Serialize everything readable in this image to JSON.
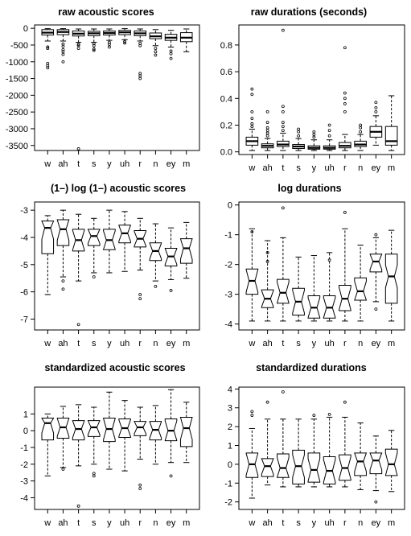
{
  "chart_data": [
    {
      "type": "boxplot",
      "title": "raw acoustic scores",
      "notched": false,
      "categories": [
        "w",
        "ah",
        "t",
        "s",
        "y",
        "uh",
        "r",
        "n",
        "ey",
        "m"
      ],
      "ylim": [
        -3650,
        100
      ],
      "yticks": [
        0,
        -500,
        -1000,
        -1500,
        -2000,
        -2500,
        -3000,
        -3500
      ],
      "ytick_labels": [
        "0",
        "-500",
        "-1000",
        "-1500",
        "-2000",
        "-2500",
        "-3000",
        "-3500"
      ],
      "boxes": [
        {
          "low": -380,
          "q1": -200,
          "median": -130,
          "q3": -40,
          "high": -10,
          "outliers": [
            -560,
            -600,
            -1050,
            -1120,
            -1180
          ]
        },
        {
          "low": -380,
          "q1": -190,
          "median": -110,
          "q3": -40,
          "high": -10,
          "outliers": [
            -470,
            -540,
            -640,
            -700,
            -780,
            -1000
          ]
        },
        {
          "low": -420,
          "q1": -230,
          "median": -160,
          "q3": -80,
          "high": -20,
          "outliers": [
            -480,
            -510,
            -600,
            -3600
          ]
        },
        {
          "low": -420,
          "q1": -220,
          "median": -150,
          "q3": -90,
          "high": -20,
          "outliers": [
            -460,
            -520,
            -620,
            -660
          ]
        },
        {
          "low": -360,
          "q1": -200,
          "median": -140,
          "q3": -80,
          "high": -20,
          "outliers": [
            -420,
            -480,
            -560
          ]
        },
        {
          "low": -340,
          "q1": -190,
          "median": -120,
          "q3": -60,
          "high": -10,
          "outliers": [
            -400,
            -440
          ]
        },
        {
          "low": -380,
          "q1": -220,
          "median": -150,
          "q3": -80,
          "high": -20,
          "outliers": [
            -450,
            -520,
            -1350,
            -1420,
            -1500
          ]
        },
        {
          "low": -520,
          "q1": -310,
          "median": -240,
          "q3": -140,
          "high": -40,
          "outliers": [
            -600,
            -700,
            -800
          ]
        },
        {
          "low": -560,
          "q1": -360,
          "median": -280,
          "q3": -180,
          "high": -60,
          "outliers": [
            -680,
            -760,
            -900
          ]
        },
        {
          "low": -700,
          "q1": -400,
          "median": -280,
          "q3": -130,
          "high": -20,
          "outliers": []
        }
      ]
    },
    {
      "type": "boxplot",
      "title": "raw durations (seconds)",
      "notched": false,
      "categories": [
        "w",
        "ah",
        "t",
        "s",
        "y",
        "uh",
        "r",
        "n",
        "ey",
        "m"
      ],
      "ylim": [
        -0.02,
        0.95
      ],
      "yticks": [
        0,
        0.2,
        0.4,
        0.6,
        0.8
      ],
      "ytick_labels": [
        "0.0",
        "0.2",
        "0.4",
        "0.6",
        "0.8"
      ],
      "boxes": [
        {
          "low": 0.01,
          "q1": 0.05,
          "median": 0.08,
          "q3": 0.11,
          "high": 0.17,
          "outliers": [
            0.19,
            0.21,
            0.25,
            0.3,
            0.43,
            0.47
          ]
        },
        {
          "low": 0.01,
          "q1": 0.03,
          "median": 0.045,
          "q3": 0.06,
          "high": 0.1,
          "outliers": [
            0.12,
            0.14,
            0.16,
            0.18,
            0.22,
            0.3
          ]
        },
        {
          "low": 0.01,
          "q1": 0.04,
          "median": 0.055,
          "q3": 0.08,
          "high": 0.14,
          "outliers": [
            0.16,
            0.19,
            0.22,
            0.3,
            0.34,
            0.91
          ]
        },
        {
          "low": 0.01,
          "q1": 0.025,
          "median": 0.04,
          "q3": 0.055,
          "high": 0.1,
          "outliers": [
            0.12,
            0.15,
            0.17
          ]
        },
        {
          "low": 0.01,
          "q1": 0.02,
          "median": 0.03,
          "q3": 0.045,
          "high": 0.09,
          "outliers": [
            0.11,
            0.13,
            0.15
          ]
        },
        {
          "low": 0.01,
          "q1": 0.02,
          "median": 0.03,
          "q3": 0.045,
          "high": 0.09,
          "outliers": [
            0.12,
            0.16,
            0.2
          ]
        },
        {
          "low": 0.01,
          "q1": 0.03,
          "median": 0.045,
          "q3": 0.07,
          "high": 0.13,
          "outliers": [
            0.3,
            0.36,
            0.4,
            0.44,
            0.78
          ]
        },
        {
          "low": 0.01,
          "q1": 0.04,
          "median": 0.055,
          "q3": 0.08,
          "high": 0.13,
          "outliers": [
            0.15,
            0.18,
            0.2
          ]
        },
        {
          "low": 0.05,
          "q1": 0.11,
          "median": 0.15,
          "q3": 0.19,
          "high": 0.27,
          "outliers": [
            0.3,
            0.33,
            0.37
          ]
        },
        {
          "low": 0.01,
          "q1": 0.05,
          "median": 0.08,
          "q3": 0.19,
          "high": 0.42,
          "outliers": []
        }
      ]
    },
    {
      "type": "boxplot",
      "title": "(1–) log (1–) acoustic scores",
      "notched": true,
      "categories": [
        "w",
        "ah",
        "t",
        "s",
        "y",
        "uh",
        "r",
        "n",
        "ey",
        "m"
      ],
      "ylim": [
        -7.4,
        -2.7
      ],
      "yticks": [
        -3,
        -4,
        -5,
        -6,
        -7
      ],
      "ytick_labels": [
        "-3",
        "-4",
        "-5",
        "-6",
        "-7"
      ],
      "boxes": [
        {
          "low": -6.1,
          "q1": -4.6,
          "median": -3.65,
          "q3": -3.4,
          "high": -3.2,
          "outliers": []
        },
        {
          "low": -5.45,
          "q1": -4.3,
          "median": -3.7,
          "q3": -3.35,
          "high": -3.0,
          "outliers": [
            -5.6,
            -5.9
          ]
        },
        {
          "low": -5.6,
          "q1": -4.5,
          "median": -4.1,
          "q3": -3.7,
          "high": -3.15,
          "outliers": [
            -7.2
          ]
        },
        {
          "low": -5.3,
          "q1": -4.3,
          "median": -3.95,
          "q3": -3.7,
          "high": -3.3,
          "outliers": [
            -5.45
          ]
        },
        {
          "low": -5.3,
          "q1": -4.45,
          "median": -4.1,
          "q3": -3.7,
          "high": -3.0,
          "outliers": []
        },
        {
          "low": -5.25,
          "q1": -4.2,
          "median": -3.85,
          "q3": -3.55,
          "high": -3.05,
          "outliers": []
        },
        {
          "low": -5.2,
          "q1": -4.35,
          "median": -4.05,
          "q3": -3.75,
          "high": -3.3,
          "outliers": [
            -6.1,
            -6.25
          ]
        },
        {
          "low": -5.6,
          "q1": -4.85,
          "median": -4.5,
          "q3": -4.2,
          "high": -3.5,
          "outliers": [
            -5.8
          ]
        },
        {
          "low": -5.55,
          "q1": -5.05,
          "median": -4.7,
          "q3": -4.4,
          "high": -3.65,
          "outliers": [
            -5.95
          ]
        },
        {
          "low": -5.5,
          "q1": -4.95,
          "median": -4.4,
          "q3": -4.05,
          "high": -3.45,
          "outliers": []
        }
      ]
    },
    {
      "type": "boxplot",
      "title": "log durations",
      "notched": true,
      "categories": [
        "w",
        "ah",
        "t",
        "s",
        "y",
        "uh",
        "r",
        "n",
        "ey",
        "m"
      ],
      "ylim": [
        -4.2,
        0.1
      ],
      "yticks": [
        0,
        -1,
        -2,
        -3,
        -4
      ],
      "ytick_labels": [
        "0",
        "-1",
        "-2",
        "-3",
        "-4"
      ],
      "boxes": [
        {
          "low": -3.9,
          "q1": -3.0,
          "median": -2.55,
          "q3": -2.15,
          "high": -0.8,
          "outliers": [
            -0.9
          ]
        },
        {
          "low": -3.9,
          "q1": -3.45,
          "median": -3.15,
          "q3": -2.85,
          "high": -1.2,
          "outliers": [
            -1.6,
            -1.9
          ]
        },
        {
          "low": -3.9,
          "q1": -3.3,
          "median": -2.95,
          "q3": -2.5,
          "high": -1.1,
          "outliers": [
            -0.1
          ]
        },
        {
          "low": -3.9,
          "q1": -3.7,
          "median": -3.25,
          "q3": -2.8,
          "high": -1.75,
          "outliers": []
        },
        {
          "low": -3.9,
          "q1": -3.8,
          "median": -3.45,
          "q3": -3.05,
          "high": -1.7,
          "outliers": []
        },
        {
          "low": -3.9,
          "q1": -3.8,
          "median": -3.45,
          "q3": -3.05,
          "high": -1.6,
          "outliers": [
            -1.85
          ]
        },
        {
          "low": -3.9,
          "q1": -3.55,
          "median": -3.15,
          "q3": -2.7,
          "high": -0.8,
          "outliers": [
            -0.25
          ]
        },
        {
          "low": -3.9,
          "q1": -3.2,
          "median": -2.9,
          "q3": -2.45,
          "high": -1.35,
          "outliers": []
        },
        {
          "low": -3.25,
          "q1": -2.25,
          "median": -1.9,
          "q3": -1.65,
          "high": -1.1,
          "outliers": [
            -3.5,
            -1.0
          ]
        },
        {
          "low": -3.9,
          "q1": -3.3,
          "median": -2.4,
          "q3": -1.65,
          "high": -0.85,
          "outliers": []
        }
      ]
    },
    {
      "type": "boxplot",
      "title": "standardized acoustic scores",
      "notched": true,
      "categories": [
        "w",
        "ah",
        "t",
        "s",
        "y",
        "uh",
        "r",
        "n",
        "ey",
        "m"
      ],
      "ylim": [
        -4.7,
        2.6
      ],
      "yticks": [
        1,
        0,
        -1,
        -2,
        -3,
        -4
      ],
      "ytick_labels": [
        "1",
        "0",
        "-1",
        "-2",
        "-3",
        "-4"
      ],
      "boxes": [
        {
          "low": -2.7,
          "q1": -0.55,
          "median": 0.45,
          "q3": 0.75,
          "high": 1.0,
          "outliers": []
        },
        {
          "low": -2.2,
          "q1": -0.45,
          "median": 0.2,
          "q3": 0.75,
          "high": 1.45,
          "outliers": [
            -2.3
          ]
        },
        {
          "low": -2.1,
          "q1": -0.55,
          "median": 0.1,
          "q3": 0.6,
          "high": 1.55,
          "outliers": [
            -4.5
          ]
        },
        {
          "low": -2.0,
          "q1": -0.35,
          "median": 0.2,
          "q3": 0.6,
          "high": 1.4,
          "outliers": [
            -2.55,
            -2.7
          ]
        },
        {
          "low": -2.3,
          "q1": -0.65,
          "median": 0.1,
          "q3": 0.75,
          "high": 2.3,
          "outliers": []
        },
        {
          "low": -2.4,
          "q1": -0.4,
          "median": 0.15,
          "q3": 0.7,
          "high": 1.8,
          "outliers": []
        },
        {
          "low": -1.7,
          "q1": -0.3,
          "median": 0.2,
          "q3": 0.55,
          "high": 1.4,
          "outliers": [
            -3.25,
            -3.45
          ]
        },
        {
          "low": -2.0,
          "q1": -0.55,
          "median": 0.05,
          "q3": 0.55,
          "high": 1.5,
          "outliers": []
        },
        {
          "low": -1.9,
          "q1": -0.6,
          "median": 0.0,
          "q3": 0.7,
          "high": 2.45,
          "outliers": [
            -2.7
          ]
        },
        {
          "low": -1.9,
          "q1": -0.95,
          "median": 0.15,
          "q3": 0.8,
          "high": 1.7,
          "outliers": []
        }
      ]
    },
    {
      "type": "boxplot",
      "title": "standardized durations",
      "notched": true,
      "categories": [
        "w",
        "ah",
        "t",
        "s",
        "y",
        "uh",
        "r",
        "n",
        "ey",
        "m"
      ],
      "ylim": [
        -2.4,
        4.1
      ],
      "yticks": [
        4,
        3,
        2,
        1,
        0,
        -1,
        -2
      ],
      "ytick_labels": [
        "4",
        "3",
        "2",
        "1",
        "0",
        "-1",
        "-2"
      ],
      "boxes": [
        {
          "low": -1.8,
          "q1": -0.7,
          "median": 0.0,
          "q3": 0.6,
          "high": 1.9,
          "outliers": [
            2.6,
            2.8
          ]
        },
        {
          "low": -1.1,
          "q1": -0.65,
          "median": -0.1,
          "q3": 0.3,
          "high": 2.4,
          "outliers": [
            3.3
          ]
        },
        {
          "low": -1.2,
          "q1": -0.7,
          "median": -0.2,
          "q3": 0.55,
          "high": 2.4,
          "outliers": [
            3.85
          ]
        },
        {
          "low": -1.2,
          "q1": -1.05,
          "median": -0.1,
          "q3": 0.75,
          "high": 2.4,
          "outliers": []
        },
        {
          "low": -1.2,
          "q1": -0.95,
          "median": -0.3,
          "q3": 0.6,
          "high": 2.4,
          "outliers": [
            2.6
          ]
        },
        {
          "low": -1.2,
          "q1": -1.05,
          "median": -0.35,
          "q3": 0.4,
          "high": 2.5,
          "outliers": [
            2.65
          ]
        },
        {
          "low": -1.2,
          "q1": -0.85,
          "median": -0.2,
          "q3": 0.5,
          "high": 2.5,
          "outliers": [
            3.3
          ]
        },
        {
          "low": -1.35,
          "q1": -0.6,
          "median": 0.15,
          "q3": 0.6,
          "high": 2.2,
          "outliers": []
        },
        {
          "low": -1.4,
          "q1": -0.5,
          "median": 0.2,
          "q3": 0.6,
          "high": 1.5,
          "outliers": [
            -2.0
          ]
        },
        {
          "low": -1.45,
          "q1": -0.6,
          "median": 0.0,
          "q3": 0.8,
          "high": 1.8,
          "outliers": []
        }
      ]
    }
  ]
}
